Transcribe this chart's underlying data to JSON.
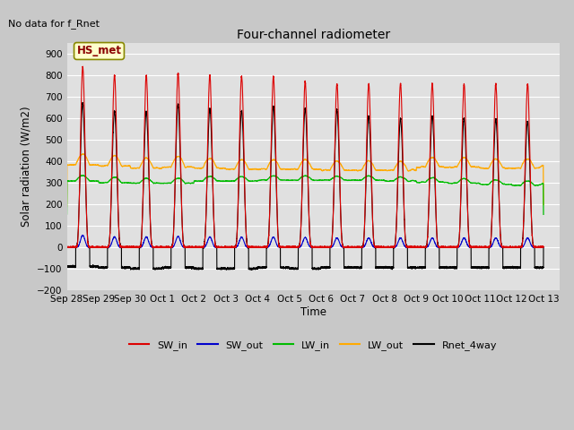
{
  "title": "Four-channel radiometer",
  "top_left_text": "No data for f_Rnet",
  "box_label": "HS_met",
  "ylabel": "Solar radiation (W/m2)",
  "xlabel": "Time",
  "xlim_days": [
    0,
    15.5
  ],
  "ylim": [
    -200,
    950
  ],
  "yticks": [
    -200,
    -100,
    0,
    100,
    200,
    300,
    400,
    500,
    600,
    700,
    800,
    900
  ],
  "x_tick_labels": [
    "Sep 28",
    "Sep 29",
    "Sep 30",
    "Oct 1",
    "Oct 2",
    "Oct 3",
    "Oct 4",
    "Oct 5",
    "Oct 6",
    "Oct 7",
    "Oct 8",
    "Oct 9",
    "Oct 10",
    "Oct 11",
    "Oct 12",
    "Oct 13"
  ],
  "x_tick_positions": [
    0,
    1,
    2,
    3,
    4,
    5,
    6,
    7,
    8,
    9,
    10,
    11,
    12,
    13,
    14,
    15
  ],
  "fig_bg_color": "#c8c8c8",
  "plot_bg_color": "#e0e0e0",
  "grid_color": "#ffffff",
  "legend_items": [
    {
      "label": "SW_in",
      "color": "#dd0000"
    },
    {
      "label": "SW_out",
      "color": "#0000cc"
    },
    {
      "label": "LW_in",
      "color": "#00bb00"
    },
    {
      "label": "LW_out",
      "color": "#ffaa00"
    },
    {
      "label": "Rnet_4way",
      "color": "#000000"
    }
  ],
  "num_days": 15,
  "day_peak_SW_in": [
    840,
    800,
    800,
    810,
    800,
    795,
    795,
    770,
    760,
    760,
    760,
    760,
    760,
    760,
    760
  ],
  "day_peak_SW_out": [
    55,
    48,
    48,
    50,
    48,
    47,
    47,
    45,
    43,
    43,
    43,
    43,
    43,
    43,
    43
  ],
  "day_baseline_LW_in": [
    308,
    300,
    298,
    298,
    308,
    308,
    312,
    312,
    312,
    312,
    308,
    302,
    298,
    293,
    288
  ],
  "day_peak_LW_in_bump": [
    25,
    25,
    22,
    23,
    22,
    20,
    20,
    20,
    18,
    19,
    19,
    22,
    21,
    20,
    20
  ],
  "day_baseline_LW_out": [
    383,
    378,
    368,
    373,
    368,
    363,
    363,
    363,
    358,
    358,
    358,
    373,
    373,
    368,
    368
  ],
  "day_peak_LW_out_bump": [
    50,
    48,
    46,
    50,
    46,
    44,
    44,
    45,
    43,
    43,
    42,
    46,
    44,
    43,
    43
  ],
  "day_peak_Rnet": [
    670,
    635,
    630,
    665,
    645,
    635,
    655,
    645,
    640,
    610,
    600,
    610,
    600,
    595,
    585
  ],
  "day_trough_Rnet": [
    -90,
    -95,
    -100,
    -95,
    -100,
    -100,
    -95,
    -100,
    -95,
    -95,
    -95,
    -95,
    -95,
    -95,
    -95
  ]
}
